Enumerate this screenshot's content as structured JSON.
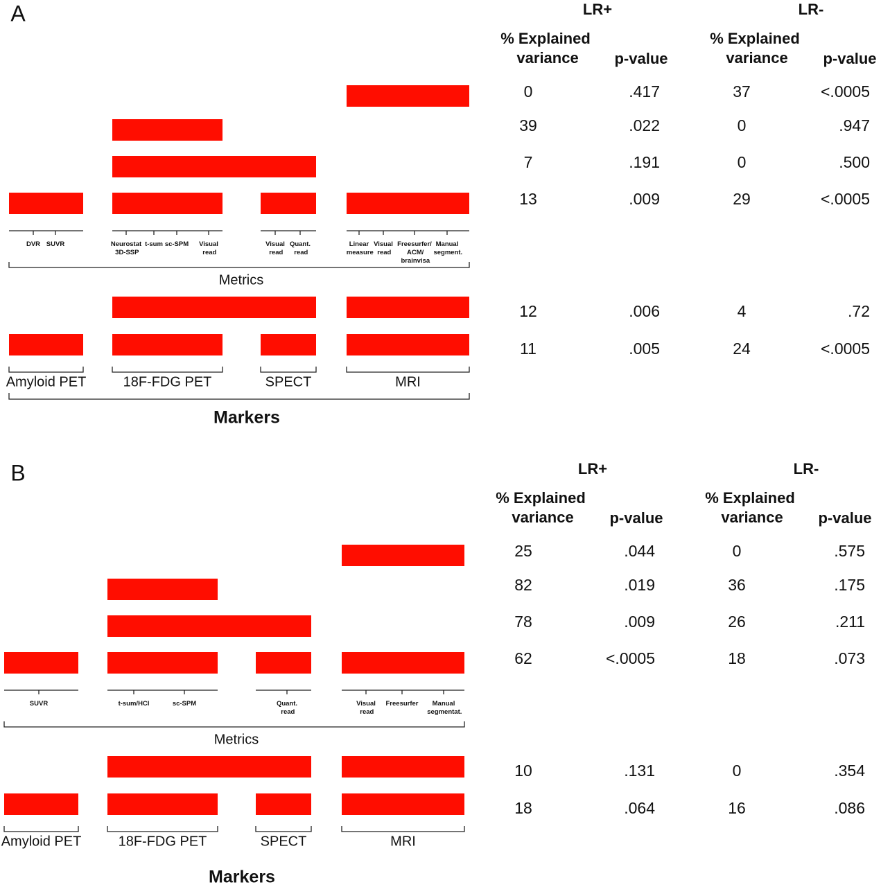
{
  "panels": [
    {
      "label": "A",
      "headers": {
        "lr_plus": "LR+",
        "lr_minus": "LR-",
        "lr_plus_variance": "% Explained variance",
        "lr_plus_p": "p-value",
        "lr_minus_variance": "% Explained variance",
        "lr_minus_p": "p-value"
      },
      "metric_rows": [
        {
          "lr_plus_variance": 0,
          "lr_plus_p": ".417",
          "lr_minus_variance": 37,
          "lr_minus_p": "<.0005"
        },
        {
          "lr_plus_variance": 39,
          "lr_plus_p": ".022",
          "lr_minus_variance": 0,
          "lr_minus_p": ".947"
        },
        {
          "lr_plus_variance": 7,
          "lr_plus_p": ".191",
          "lr_minus_variance": 0,
          "lr_minus_p": ".500"
        },
        {
          "lr_plus_variance": 13,
          "lr_plus_p": ".009",
          "lr_minus_variance": 29,
          "lr_minus_p": "<.0005"
        }
      ],
      "metric_labels": [
        "DVR",
        "SUVR",
        "Neurostat 3D-SSP",
        "t-sum",
        "sc-SPM",
        "Visual read",
        "Visual read",
        "Quant. read",
        "Linear measure",
        "Visual read",
        "Freesurfer/ ACM/ brainvisa",
        "Manual segment."
      ],
      "metrics_title": "Metrics",
      "marker_rows": [
        {
          "lr_plus_variance": 12,
          "lr_plus_p": ".006",
          "lr_minus_variance": 4,
          "lr_minus_p": ".72"
        },
        {
          "lr_plus_variance": 11,
          "lr_plus_p": ".005",
          "lr_minus_variance": 24,
          "lr_minus_p": "<.0005"
        }
      ],
      "marker_labels": [
        "Amyloid PET",
        "18F-FDG PET",
        "SPECT",
        "MRI"
      ],
      "markers_title": "Markers"
    },
    {
      "label": "B",
      "headers": {
        "lr_plus": "LR+",
        "lr_minus": "LR-",
        "lr_plus_variance": "% Explained variance",
        "lr_plus_p": "p-value",
        "lr_minus_variance": "% Explained variance",
        "lr_minus_p": "p-value"
      },
      "metric_rows": [
        {
          "lr_plus_variance": 25,
          "lr_plus_p": ".044",
          "lr_minus_variance": 0,
          "lr_minus_p": ".575"
        },
        {
          "lr_plus_variance": 82,
          "lr_plus_p": ".019",
          "lr_minus_variance": 36,
          "lr_minus_p": ".175"
        },
        {
          "lr_plus_variance": 78,
          "lr_plus_p": ".009",
          "lr_minus_variance": 26,
          "lr_minus_p": ".211"
        },
        {
          "lr_plus_variance": 62,
          "lr_plus_p": "<.0005",
          "lr_minus_variance": 18,
          "lr_minus_p": ".073"
        }
      ],
      "metric_labels": [
        "SUVR",
        "t-sum/HCI",
        "sc-SPM",
        "Quant. read",
        "Visual read",
        "Freesurfer",
        "Manual segmentat."
      ],
      "metrics_title": "Metrics",
      "marker_rows": [
        {
          "lr_plus_variance": 10,
          "lr_plus_p": ".131",
          "lr_minus_variance": 0,
          "lr_minus_p": ".354"
        },
        {
          "lr_plus_variance": 18,
          "lr_plus_p": ".064",
          "lr_minus_variance": 16,
          "lr_minus_p": ".086"
        }
      ],
      "marker_labels": [
        "Amyloid PET",
        "18F-FDG PET",
        "SPECT",
        "MRI"
      ],
      "markers_title": "Markers"
    }
  ]
}
